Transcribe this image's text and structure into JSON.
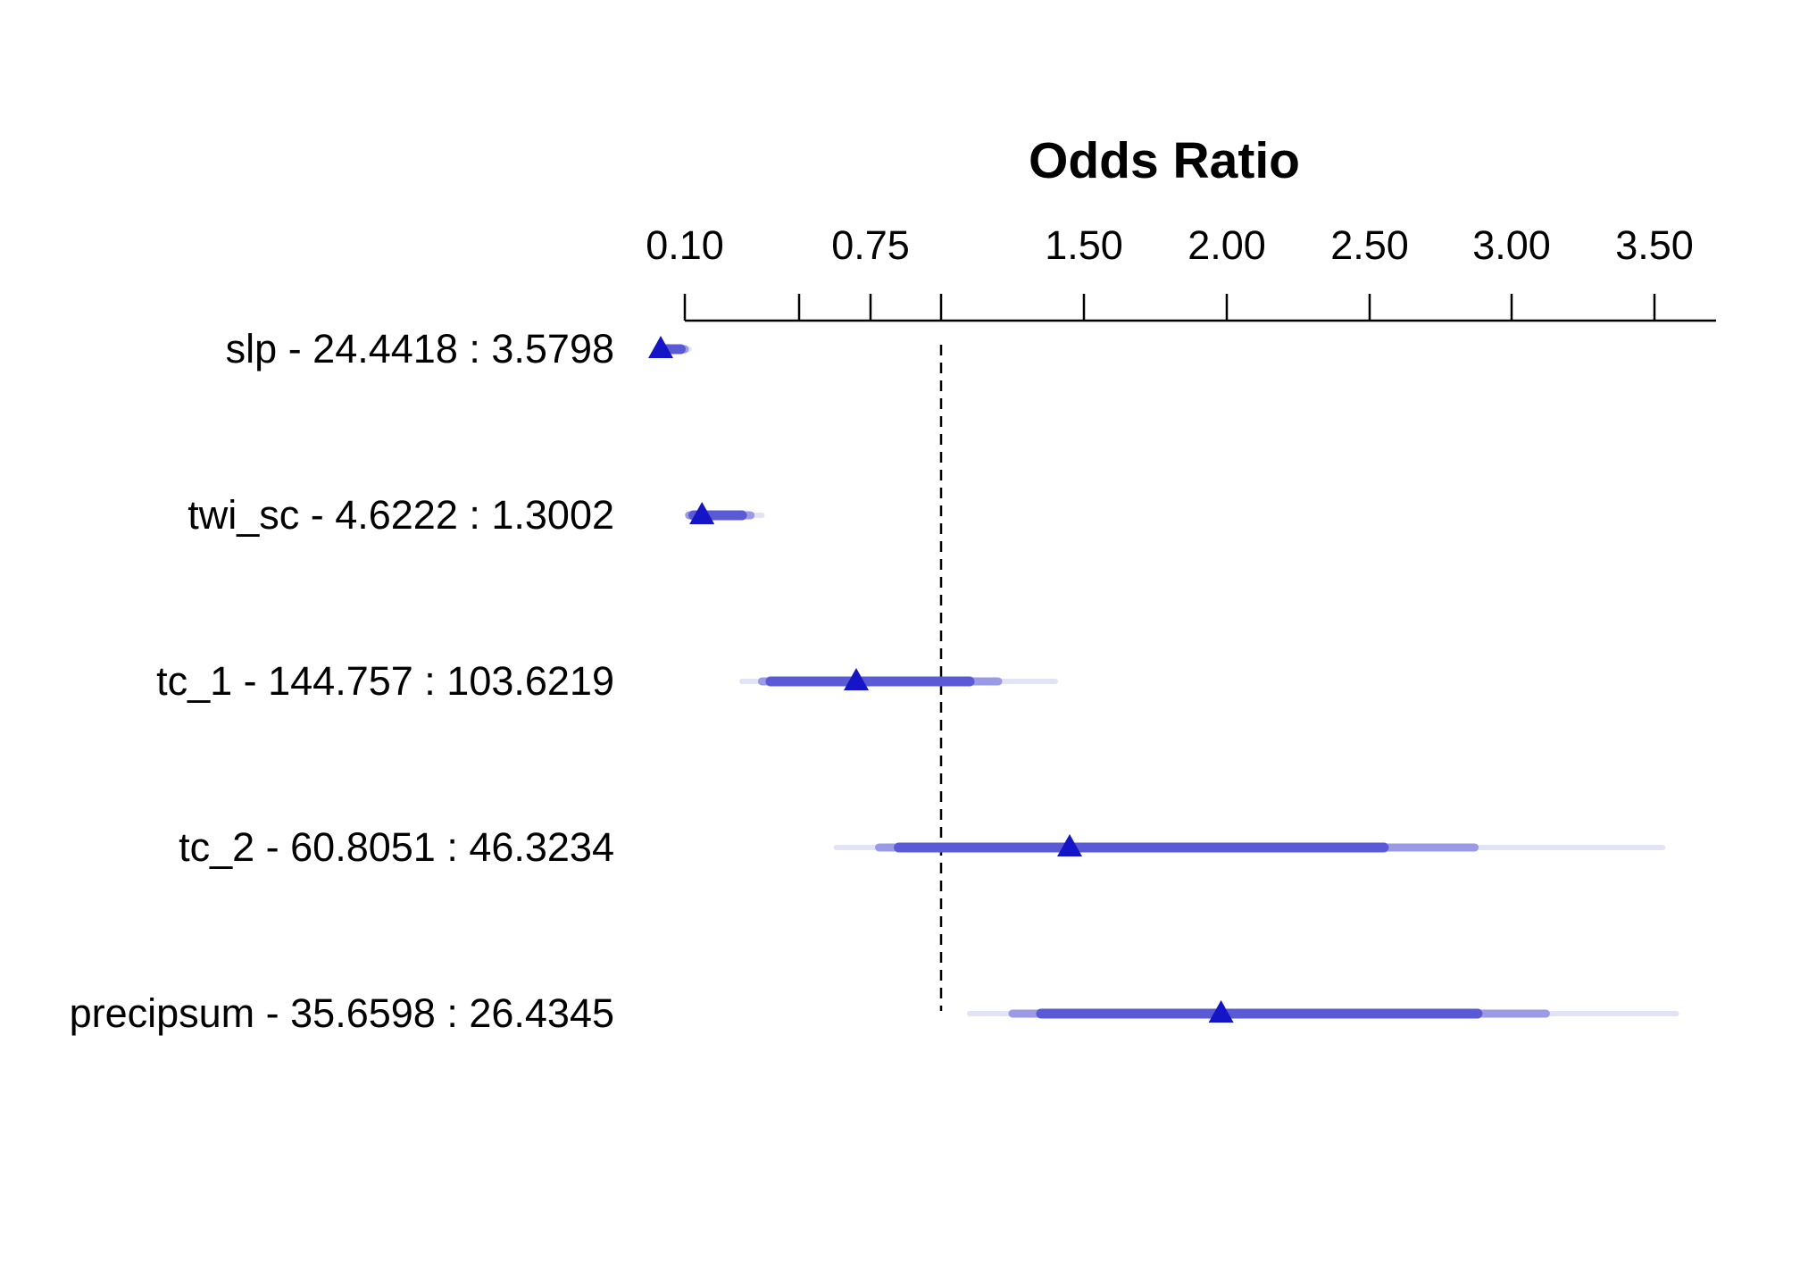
{
  "chart_data": {
    "type": "interval",
    "title": "Odds Ratio",
    "axis": {
      "position": "top",
      "scale": "logit",
      "ticks": [
        "0.10",
        "0.75",
        "1.50",
        "2.00",
        "2.50",
        "3.00",
        "3.50"
      ],
      "minor_ticks": [
        0.5,
        1.0
      ],
      "range": [
        0.1,
        3.7
      ]
    },
    "reference_line": {
      "value": 1.0,
      "style": "dashed"
    },
    "colors": {
      "point": "#1515c8",
      "bar_inner": "#5a5ad6",
      "bar_middle": "#9a9ae6",
      "bar_outer": "#e3e3f6",
      "reference": "#000000",
      "axis": "#000000"
    },
    "rows": [
      {
        "label": "slp - 24.4418 : 3.5798",
        "estimate": 0.07,
        "inner": [
          0.072,
          0.095
        ],
        "middle": [
          0.068,
          0.1
        ],
        "outer": [
          0.065,
          0.115
        ]
      },
      {
        "label": "twi_sc - 4.6222 : 1.3002",
        "estimate": 0.16,
        "inner": [
          0.13,
          0.3
        ],
        "middle": [
          0.115,
          0.33
        ],
        "outer": [
          0.11,
          0.37
        ]
      },
      {
        "label": "tc_1 - 144.757 : 103.6219",
        "estimate": 0.7,
        "inner": [
          0.4,
          1.1
        ],
        "middle": [
          0.37,
          1.2
        ],
        "outer": [
          0.3,
          1.4
        ]
      },
      {
        "label": "tc_2 - 60.8051 : 46.3234",
        "estimate": 1.45,
        "inner": [
          0.85,
          2.55
        ],
        "middle": [
          0.78,
          2.87
        ],
        "outer": [
          0.63,
          3.53
        ]
      },
      {
        "label": "precipsum - 35.6598 : 26.4345",
        "estimate": 1.98,
        "inner": [
          1.35,
          2.88
        ],
        "middle": [
          1.25,
          3.12
        ],
        "outer": [
          1.1,
          3.58
        ]
      }
    ]
  }
}
